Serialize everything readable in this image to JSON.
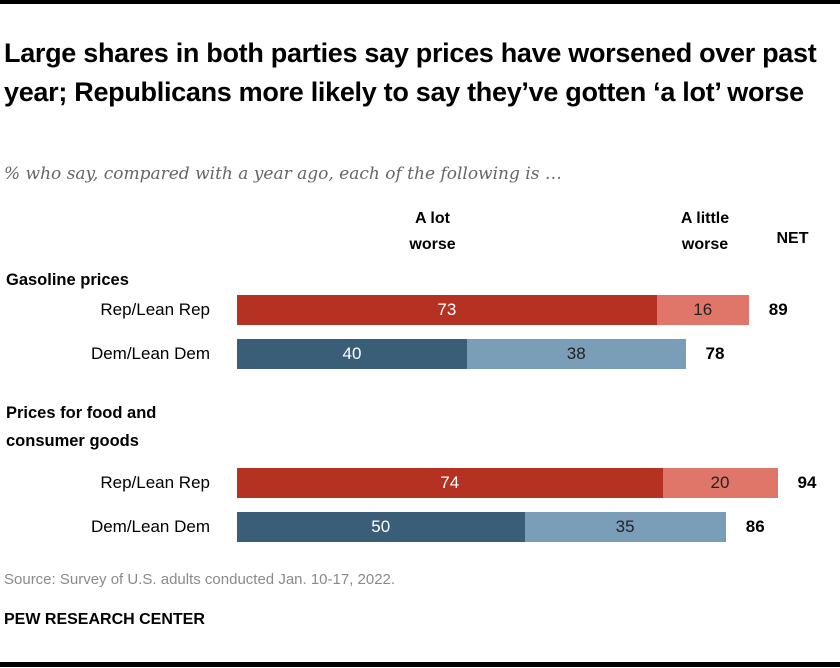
{
  "chart_data": {
    "type": "bar",
    "orientation": "horizontal",
    "stacked": true,
    "title": "Large shares in both parties say prices have worsened over past year; Republicans more likely to say they’ve gotten ‘a lot’ worse",
    "subtitle": "% who say, compared with a year ago, each of the following is …",
    "column_headers": {
      "a_lot": "A lot\nworse",
      "a_little": "A little\nworse",
      "net": "NET"
    },
    "series": [
      {
        "name": "A lot worse",
        "colors": {
          "Rep/Lean Rep": "#b53121",
          "Dem/Lean Dem": "#3b5e78"
        }
      },
      {
        "name": "A little worse",
        "colors": {
          "Rep/Lean Rep": "#e0766a",
          "Dem/Lean Dem": "#7a9db8"
        }
      }
    ],
    "groups": [
      {
        "label": "Gasoline prices",
        "rows": [
          {
            "label": "Rep/Lean Rep",
            "a_lot": 73,
            "a_little": 16,
            "net": 89,
            "party": "rep"
          },
          {
            "label": "Dem/Lean Dem",
            "a_lot": 40,
            "a_little": 38,
            "net": 78,
            "party": "dem"
          }
        ]
      },
      {
        "label": "Prices for food and\nconsumer goods",
        "rows": [
          {
            "label": "Rep/Lean Rep",
            "a_lot": 74,
            "a_little": 20,
            "net": 94,
            "party": "rep"
          },
          {
            "label": "Dem/Lean Dem",
            "a_lot": 50,
            "a_little": 35,
            "net": 86,
            "party": "dem"
          }
        ]
      }
    ],
    "xlim": [
      0,
      100
    ],
    "grid": false,
    "legend": "column headers at top"
  },
  "colors": {
    "rep_a_lot": "#b53121",
    "rep_a_little": "#e0766a",
    "dem_a_lot": "#3b5e78",
    "dem_a_little": "#7a9db8"
  },
  "footer": {
    "source": "Source: Survey of U.S. adults conducted Jan. 10-17, 2022.",
    "brand": "PEW RESEARCH CENTER"
  }
}
